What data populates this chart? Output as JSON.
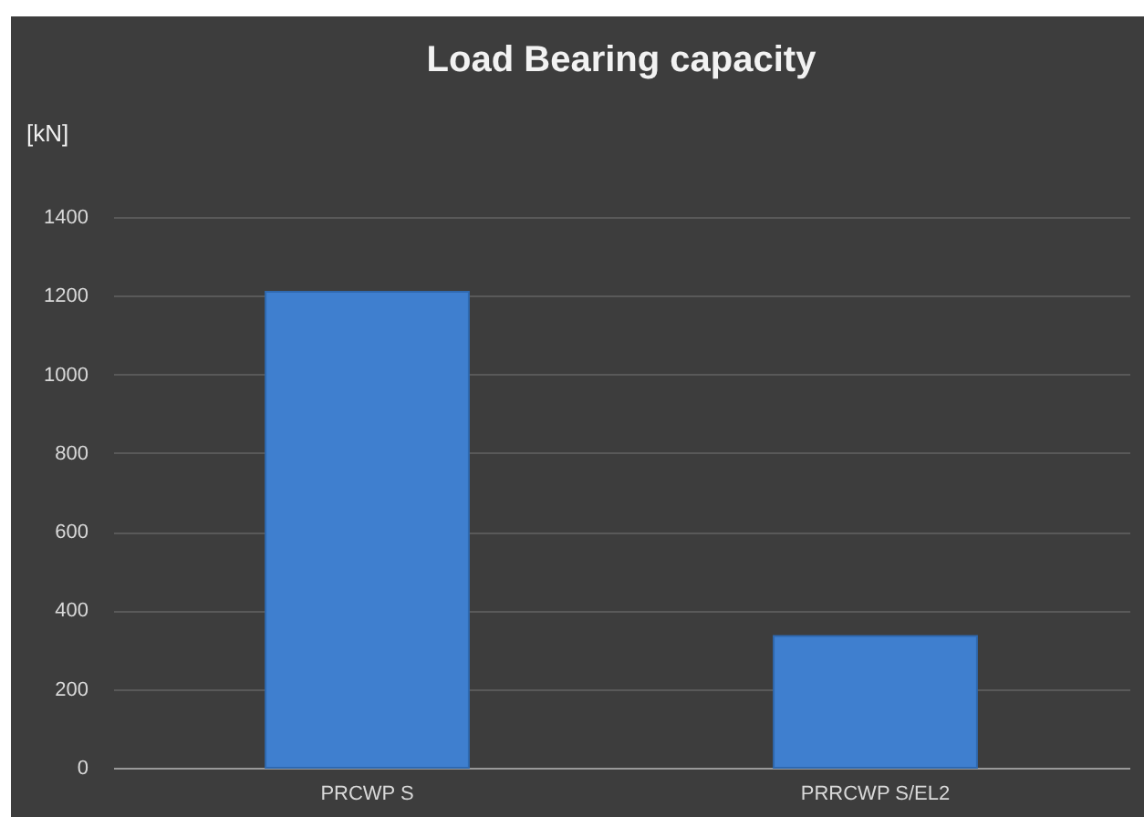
{
  "chart_data": {
    "type": "bar",
    "title": "Load  Bearing capacity",
    "ylabel": "[kN]",
    "categories": [
      "PRCWP S",
      "PRRCWP S/EL2"
    ],
    "values": [
      1210,
      335
    ],
    "color": "#3f7fcf",
    "ylim": [
      0,
      1400
    ],
    "yticks": [
      0,
      200,
      400,
      600,
      800,
      1000,
      1200,
      1400
    ],
    "grid": "y"
  }
}
